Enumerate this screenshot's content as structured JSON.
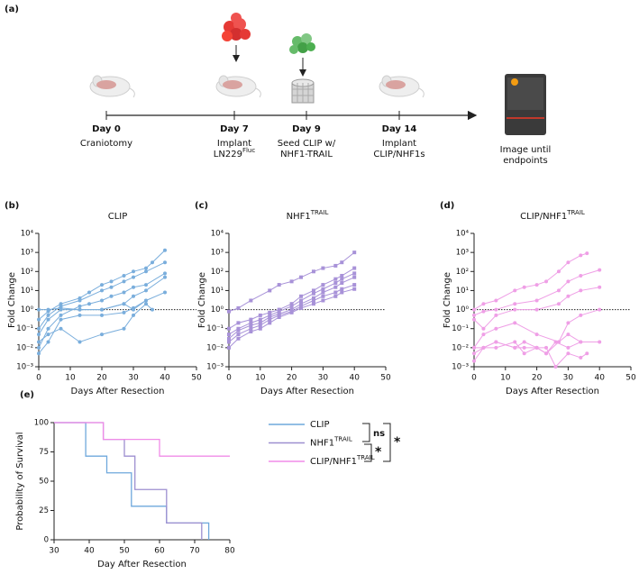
{
  "timeline": {
    "panel": "(a)",
    "steps": [
      {
        "day": "Day 0",
        "lines": [
          {
            "text": "Craniotomy"
          }
        ]
      },
      {
        "day": "Day 7",
        "lines": [
          {
            "text": "Implant"
          },
          {
            "text": "LN229",
            "sup": "Fluc"
          }
        ]
      },
      {
        "day": "Day 9",
        "lines": [
          {
            "text": "Seed CLIP w/"
          },
          {
            "text": "NHF1-TRAIL"
          }
        ]
      },
      {
        "day": "Day 14",
        "lines": [
          {
            "text": "Implant"
          },
          {
            "text": "CLIP/NHF1s"
          }
        ]
      }
    ],
    "endpoint": {
      "lines": [
        {
          "text": "Image until"
        },
        {
          "text": "endpoints"
        }
      ]
    }
  },
  "chart_data": [
    {
      "type": "line",
      "panel": "(b)",
      "title": "CLIP",
      "xlabel": "Days After Resection",
      "ylabel": "Fold Change",
      "color": "#7aaedc",
      "marker": "circle",
      "yscale": "log",
      "ref_line": 1,
      "xlim": [
        0,
        50
      ],
      "xticks": [
        0,
        10,
        20,
        30,
        40,
        50
      ],
      "ylim": [
        0.001,
        10000
      ],
      "yticks": [
        {
          "value": 0.001,
          "label": "10⁻³"
        },
        {
          "value": 0.01,
          "label": "10⁻²"
        },
        {
          "value": 0.1,
          "label": "10⁻¹"
        },
        {
          "value": 1,
          "label": "10⁰"
        },
        {
          "value": 10,
          "label": "10¹"
        },
        {
          "value": 100,
          "label": "10²"
        },
        {
          "value": 1000,
          "label": "10³"
        },
        {
          "value": 10000,
          "label": "10⁴"
        }
      ],
      "series": [
        {
          "x": [
            0,
            3,
            7,
            13,
            16,
            20,
            23,
            27,
            30,
            34,
            36,
            40
          ],
          "values": [
            0.3,
            0.8,
            2,
            4,
            8,
            20,
            30,
            60,
            100,
            150,
            300,
            1300
          ]
        },
        {
          "x": [
            0,
            3,
            7,
            13,
            20,
            23,
            27,
            30,
            34,
            40
          ],
          "values": [
            0.1,
            0.5,
            1.5,
            3,
            10,
            15,
            30,
            50,
            100,
            300
          ]
        },
        {
          "x": [
            0,
            3,
            7,
            13,
            16,
            20,
            23,
            27,
            30,
            34,
            40
          ],
          "values": [
            0.01,
            0.1,
            0.5,
            1.5,
            2,
            3,
            5,
            8,
            15,
            20,
            80
          ]
        },
        {
          "x": [
            0,
            3,
            7,
            13,
            20,
            27,
            30,
            34,
            40
          ],
          "values": [
            0.05,
            0.3,
            1,
            1,
            1,
            2,
            5,
            10,
            50
          ]
        },
        {
          "x": [
            0,
            3,
            7,
            13,
            20,
            27,
            30,
            34,
            40
          ],
          "values": [
            0.005,
            0.02,
            0.3,
            0.5,
            0.5,
            0.7,
            1.2,
            3,
            8
          ]
        },
        {
          "x": [
            0,
            3,
            7,
            13,
            20,
            27,
            30,
            34,
            36
          ],
          "values": [
            0.02,
            0.05,
            0.1,
            0.02,
            0.05,
            0.1,
            0.5,
            2,
            1
          ]
        },
        {
          "x": [
            0,
            3,
            7,
            13,
            20,
            27,
            30,
            34
          ],
          "values": [
            1,
            1,
            1.2,
            1,
            1,
            2,
            1,
            3
          ]
        }
      ]
    },
    {
      "type": "line",
      "panel": "(c)",
      "title": "NHF1",
      "title_sup": "TRAIL",
      "xlabel": "Days After Resection",
      "ylabel": "Fold Change",
      "color": "#a892d8",
      "marker": "square",
      "yscale": "log",
      "ref_line": 1,
      "xlim": [
        0,
        50
      ],
      "xticks": [
        0,
        10,
        20,
        30,
        40,
        50
      ],
      "ylim": [
        0.001,
        10000
      ],
      "yticks": [
        {
          "value": 0.001,
          "label": "10⁻³"
        },
        {
          "value": 0.01,
          "label": "10⁻²"
        },
        {
          "value": 0.1,
          "label": "10⁻¹"
        },
        {
          "value": 1,
          "label": "10⁰"
        },
        {
          "value": 10,
          "label": "10¹"
        },
        {
          "value": 100,
          "label": "10²"
        },
        {
          "value": 1000,
          "label": "10³"
        },
        {
          "value": 10000,
          "label": "10⁴"
        }
      ],
      "series": [
        {
          "x": [
            0,
            3,
            7,
            13,
            16,
            20,
            23,
            27,
            30,
            34,
            36,
            40
          ],
          "values": [
            0.8,
            1.2,
            3,
            10,
            20,
            30,
            50,
            100,
            150,
            200,
            300,
            1000
          ]
        },
        {
          "x": [
            0,
            3,
            7,
            10,
            13,
            16,
            20,
            23,
            27,
            30,
            34,
            36,
            40
          ],
          "values": [
            0.1,
            0.2,
            0.3,
            0.5,
            0.7,
            1,
            2,
            5,
            10,
            20,
            40,
            60,
            150
          ]
        },
        {
          "x": [
            0,
            3,
            7,
            10,
            13,
            16,
            20,
            23,
            27,
            30,
            34,
            36,
            40
          ],
          "values": [
            0.05,
            0.1,
            0.2,
            0.3,
            0.5,
            0.8,
            1.5,
            3,
            7,
            12,
            25,
            40,
            80
          ]
        },
        {
          "x": [
            0,
            3,
            7,
            10,
            13,
            16,
            20,
            23,
            27,
            30,
            34,
            36,
            40
          ],
          "values": [
            0.03,
            0.08,
            0.15,
            0.2,
            0.4,
            0.6,
            1,
            2,
            4,
            8,
            15,
            25,
            50
          ]
        },
        {
          "x": [
            0,
            3,
            7,
            10,
            13,
            16,
            20,
            23,
            27,
            30,
            34,
            36,
            40
          ],
          "values": [
            0.02,
            0.05,
            0.1,
            0.15,
            0.3,
            0.5,
            0.8,
            1.5,
            3,
            5,
            8,
            12,
            20
          ]
        },
        {
          "x": [
            0,
            3,
            7,
            10,
            13,
            16,
            20,
            23,
            27,
            30,
            34,
            36,
            40
          ],
          "values": [
            0.01,
            0.03,
            0.07,
            0.1,
            0.2,
            0.4,
            0.7,
            1.2,
            2,
            3,
            5,
            8,
            12
          ]
        }
      ]
    },
    {
      "type": "line",
      "panel": "(d)",
      "title": "CLIP/NHF1",
      "title_sup": "TRAIL",
      "xlabel": "Days After Resection",
      "ylabel": "Fold Change",
      "color": "#ef9fe6",
      "marker": "circle",
      "yscale": "log",
      "ref_line": 1,
      "xlim": [
        0,
        50
      ],
      "xticks": [
        0,
        10,
        20,
        30,
        40,
        50
      ],
      "ylim": [
        0.001,
        10000
      ],
      "yticks": [
        {
          "value": 0.001,
          "label": "10⁻³"
        },
        {
          "value": 0.01,
          "label": "10⁻²"
        },
        {
          "value": 0.1,
          "label": "10⁻¹"
        },
        {
          "value": 1,
          "label": "10⁰"
        },
        {
          "value": 10,
          "label": "10¹"
        },
        {
          "value": 100,
          "label": "10²"
        },
        {
          "value": 1000,
          "label": "10³"
        },
        {
          "value": 10000,
          "label": "10⁴"
        }
      ],
      "series": [
        {
          "x": [
            0,
            3,
            7,
            13,
            16,
            20,
            23,
            27,
            30,
            34,
            36
          ],
          "values": [
            1,
            2,
            3,
            10,
            15,
            20,
            30,
            100,
            300,
            700,
            900
          ]
        },
        {
          "x": [
            0,
            3,
            7,
            13,
            20,
            27,
            30,
            34,
            40
          ],
          "values": [
            0.5,
            0.8,
            1,
            2,
            3,
            10,
            30,
            60,
            120
          ]
        },
        {
          "x": [
            0,
            3,
            7,
            13,
            20,
            27,
            30,
            34,
            40
          ],
          "values": [
            0.3,
            0.1,
            0.5,
            1,
            1,
            2,
            5,
            10,
            15
          ]
        },
        {
          "x": [
            0,
            3,
            7,
            13,
            20,
            27,
            30,
            34,
            40
          ],
          "values": [
            0.01,
            0.05,
            0.1,
            0.2,
            0.05,
            0.02,
            0.2,
            0.5,
            1
          ]
        },
        {
          "x": [
            0,
            3,
            7,
            13,
            16,
            20,
            23,
            27,
            30,
            34,
            40
          ],
          "values": [
            0.005,
            0.01,
            0.02,
            0.01,
            0.02,
            0.01,
            0.005,
            0.02,
            0.05,
            0.02,
            0.02
          ]
        },
        {
          "x": [
            0,
            3,
            7,
            13,
            16,
            20,
            23,
            26,
            30,
            34,
            36
          ],
          "values": [
            0.002,
            0.01,
            0.01,
            0.02,
            0.005,
            0.01,
            0.01,
            0.001,
            0.005,
            0.003,
            0.005
          ]
        },
        {
          "x": [
            0,
            3,
            7,
            13,
            16,
            20,
            23,
            26,
            30,
            34
          ],
          "values": [
            0.01,
            0.01,
            0.02,
            0.01,
            0.01,
            0.01,
            0.005,
            0.02,
            0.01,
            0.02
          ]
        }
      ]
    },
    {
      "type": "step",
      "panel": "(e)",
      "xlabel": "Day After Resection",
      "ylabel": "Probability of Survival",
      "xlim": [
        30,
        80
      ],
      "xticks": [
        30,
        40,
        50,
        60,
        70,
        80
      ],
      "ylim": [
        0,
        100
      ],
      "yticks": [
        0,
        25,
        50,
        75,
        100
      ],
      "annotations": [
        "ns",
        "*",
        "*"
      ],
      "series": [
        {
          "name": "CLIP",
          "color": "#6fa8dc",
          "x": [
            30,
            39,
            45,
            52,
            62,
            74
          ],
          "values": [
            100,
            71.4,
            57.1,
            28.6,
            14.3,
            0
          ]
        },
        {
          "name": "NHF1",
          "name_sup": "TRAIL",
          "color": "#9d8fd0",
          "x": [
            30,
            44,
            50,
            53,
            62,
            72
          ],
          "values": [
            100,
            85.7,
            71.4,
            42.9,
            14.3,
            0
          ]
        },
        {
          "name": "CLIP/NHF1",
          "name_sup": "TRAIL",
          "color": "#f08ce8",
          "x": [
            30,
            44,
            60,
            80
          ],
          "values": [
            100,
            85.7,
            71.4,
            71.4
          ]
        }
      ]
    }
  ]
}
